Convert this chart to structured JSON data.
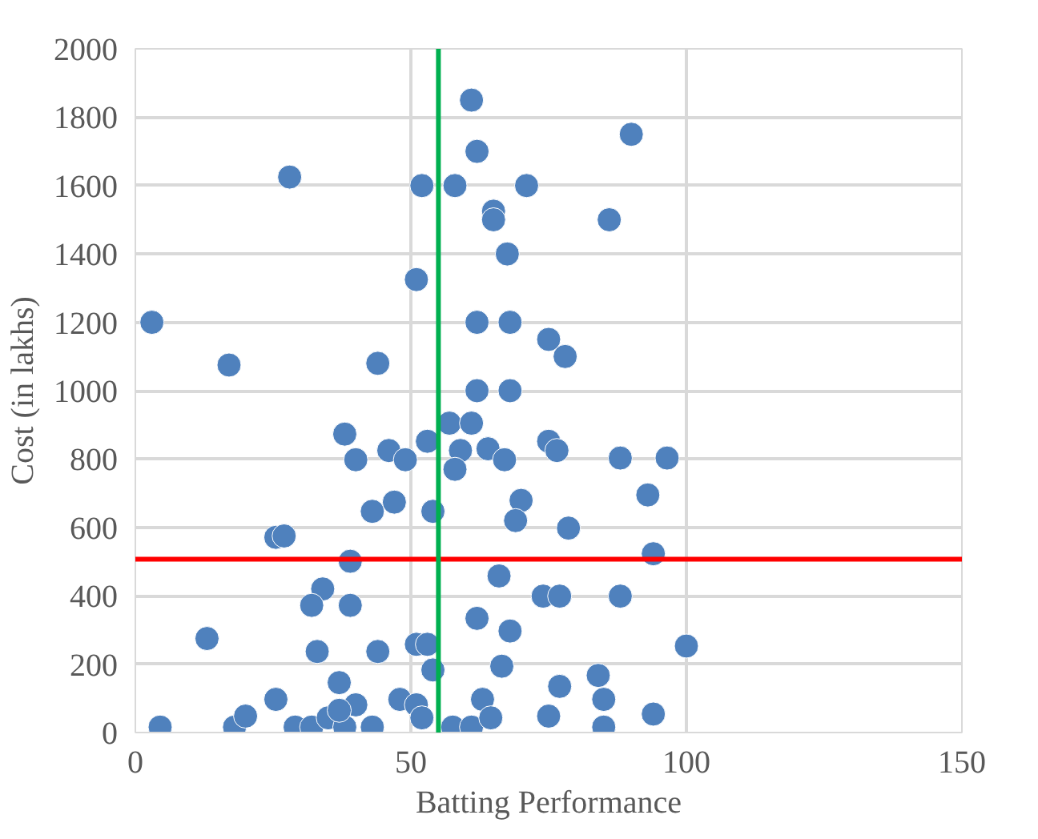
{
  "chart_data": {
    "type": "scatter",
    "xlabel": "Batting Performance",
    "ylabel": "Cost (in lakhs)",
    "xlim": [
      0,
      150
    ],
    "xticks": [
      0,
      50,
      100,
      150
    ],
    "ylim": [
      0,
      2000
    ],
    "yticks": [
      0,
      200,
      400,
      600,
      800,
      1000,
      1200,
      1400,
      1600,
      1800,
      2000
    ],
    "grid": true,
    "marker": "circle",
    "x": [
      3,
      28,
      17,
      44,
      52,
      58,
      71,
      61,
      62,
      65,
      65,
      67.5,
      51,
      62,
      68,
      75,
      78,
      90,
      86,
      62,
      68,
      38,
      40,
      46,
      49,
      53,
      57,
      61,
      59,
      58,
      64,
      67,
      43,
      47,
      54,
      25.5,
      27,
      39,
      34,
      32,
      39,
      13,
      33,
      44,
      51,
      53,
      54,
      37,
      25.5,
      4.5,
      18,
      20,
      29,
      32,
      35,
      38,
      40,
      43,
      37,
      48,
      51,
      52,
      57.6,
      61,
      63,
      64.5,
      66,
      62,
      68,
      66.5,
      75,
      77,
      75,
      76.5,
      70,
      69,
      78.6,
      93,
      88,
      96.5,
      94,
      88,
      74,
      77,
      100,
      84,
      85,
      94,
      85
    ],
    "series": [
      {
        "color": "#4f81bd",
        "values": [
          1200,
          1625,
          1075,
          1080,
          1600,
          1600,
          1600,
          1850,
          1700,
          1525,
          1500,
          1400,
          1325,
          1200,
          1200,
          1150,
          1100,
          1750,
          1500,
          1000,
          1000,
          873,
          798,
          825,
          798,
          852,
          905,
          905,
          825,
          770,
          830,
          798,
          647,
          674,
          647,
          571,
          575,
          501,
          420,
          372,
          372,
          275,
          237,
          237,
          258,
          258,
          183,
          146,
          97,
          16,
          16,
          48,
          16,
          16,
          43,
          16,
          81,
          16,
          65,
          97,
          81,
          43,
          16,
          16,
          97,
          43,
          458,
          334,
          297,
          194,
          48,
          135,
          852,
          825,
          679,
          620,
          598,
          695,
          803,
          803,
          523,
          399,
          399,
          399,
          253,
          167,
          97,
          54,
          16
        ]
      }
    ],
    "ref_lines": [
      {
        "axis": "y",
        "value": 507,
        "color": "#ff0000"
      },
      {
        "axis": "x",
        "value": 55,
        "color": "#00b050"
      }
    ]
  }
}
